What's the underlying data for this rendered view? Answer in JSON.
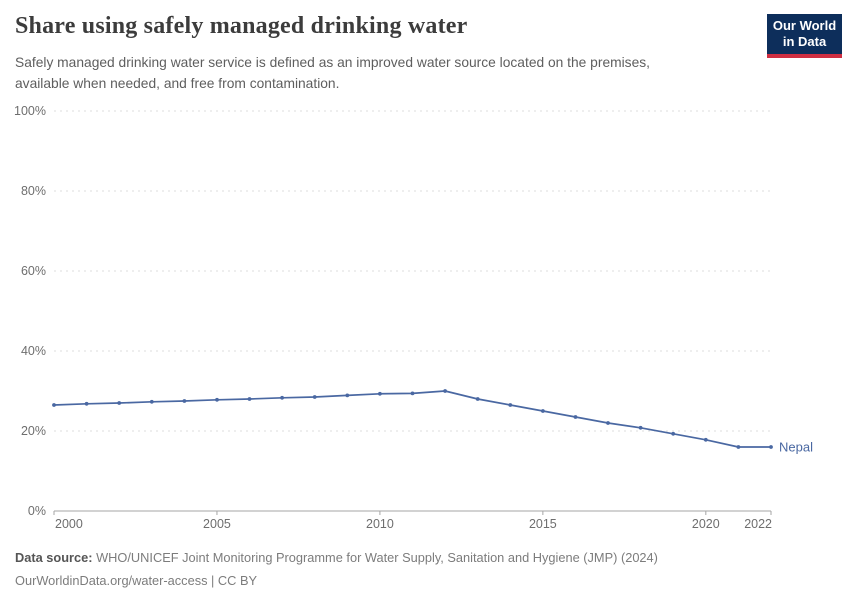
{
  "header": {
    "title": "Share using safely managed drinking water",
    "subtitle_line1": "Safely managed drinking water service is defined as an improved water source located on the premises,",
    "subtitle_line2": "available when needed, and free from contamination."
  },
  "logo": {
    "line1": "Our World",
    "line2": "in Data",
    "bg_color": "#0d2e5b",
    "accent_color": "#cf2e41"
  },
  "chart_data": {
    "type": "line",
    "title": "Share using safely managed drinking water",
    "xlabel": "",
    "ylabel": "",
    "x": [
      2000,
      2001,
      2002,
      2003,
      2004,
      2005,
      2006,
      2007,
      2008,
      2009,
      2010,
      2011,
      2012,
      2013,
      2014,
      2015,
      2016,
      2017,
      2018,
      2019,
      2020,
      2021,
      2022
    ],
    "series": [
      {
        "name": "Nepal",
        "color": "#4a68a2",
        "values": [
          26.5,
          26.8,
          27.0,
          27.3,
          27.5,
          27.8,
          28.0,
          28.3,
          28.5,
          28.9,
          29.3,
          29.4,
          30.0,
          28.0,
          26.5,
          25.0,
          23.5,
          22.0,
          20.8,
          19.3,
          17.8,
          16.0,
          16.0
        ]
      }
    ],
    "ylim": [
      0,
      100
    ],
    "yticks": [
      0,
      20,
      40,
      60,
      80,
      100
    ],
    "ytick_labels": [
      "0%",
      "20%",
      "40%",
      "60%",
      "80%",
      "100%"
    ],
    "xticks": [
      2000,
      2005,
      2010,
      2015,
      2020,
      2022
    ],
    "grid": "horizontal-dashed",
    "legend_position": "line-end-label",
    "entity_label": "Nepal"
  },
  "footer": {
    "source_label": "Data source:",
    "source_text": " WHO/UNICEF Joint Monitoring Programme for Water Supply, Sanitation and Hygiene (JMP) (2024)",
    "attribution": "OurWorldinData.org/water-access | CC BY"
  }
}
